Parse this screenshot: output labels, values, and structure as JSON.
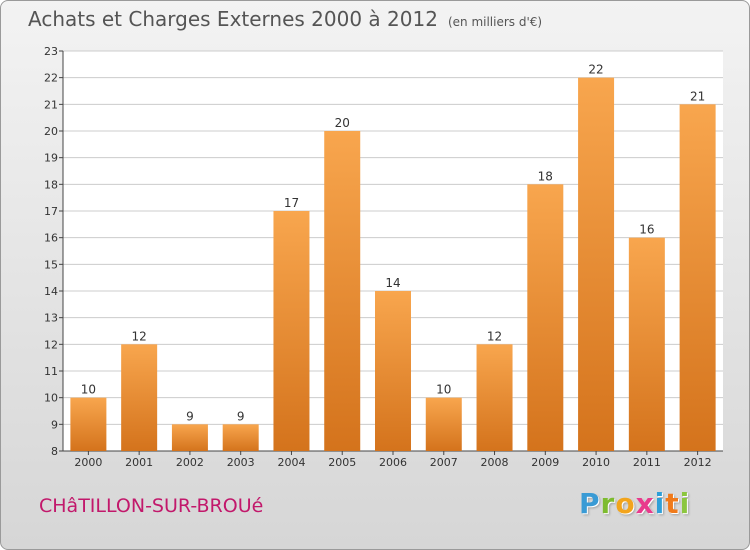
{
  "header": {
    "title": "Achats et Charges Externes 2000 à 2012",
    "unit": "(en milliers d'€)"
  },
  "footer": {
    "city": "CHâTILLON-SUR-BROUé",
    "logo_letters": [
      "P",
      "r",
      "o",
      "x",
      "i",
      "t",
      "i"
    ],
    "logo_colors": [
      "#3a9bd5",
      "#7dbb2f",
      "#f2a41c",
      "#e83a8c",
      "#2f9fd8",
      "#f07a1a",
      "#8cc63f"
    ]
  },
  "colors": {
    "bar_light": "#f8a64e",
    "bar_dark": "#d4731c",
    "grid": "#cccccc",
    "axis": "#444444"
  },
  "chart_data": {
    "type": "bar",
    "title": "Achats et Charges Externes 2000 à 2012",
    "categories": [
      "2000",
      "2001",
      "2002",
      "2003",
      "2004",
      "2005",
      "2006",
      "2007",
      "2008",
      "2009",
      "2010",
      "2011",
      "2012"
    ],
    "values": [
      10,
      12,
      9,
      9,
      17,
      20,
      14,
      10,
      12,
      18,
      22,
      16,
      21
    ],
    "ylim": [
      8,
      23
    ],
    "yticks": [
      8,
      9,
      10,
      11,
      12,
      13,
      14,
      15,
      16,
      17,
      18,
      19,
      20,
      21,
      22,
      23
    ],
    "grid": true,
    "xlabel": "",
    "ylabel": ""
  }
}
